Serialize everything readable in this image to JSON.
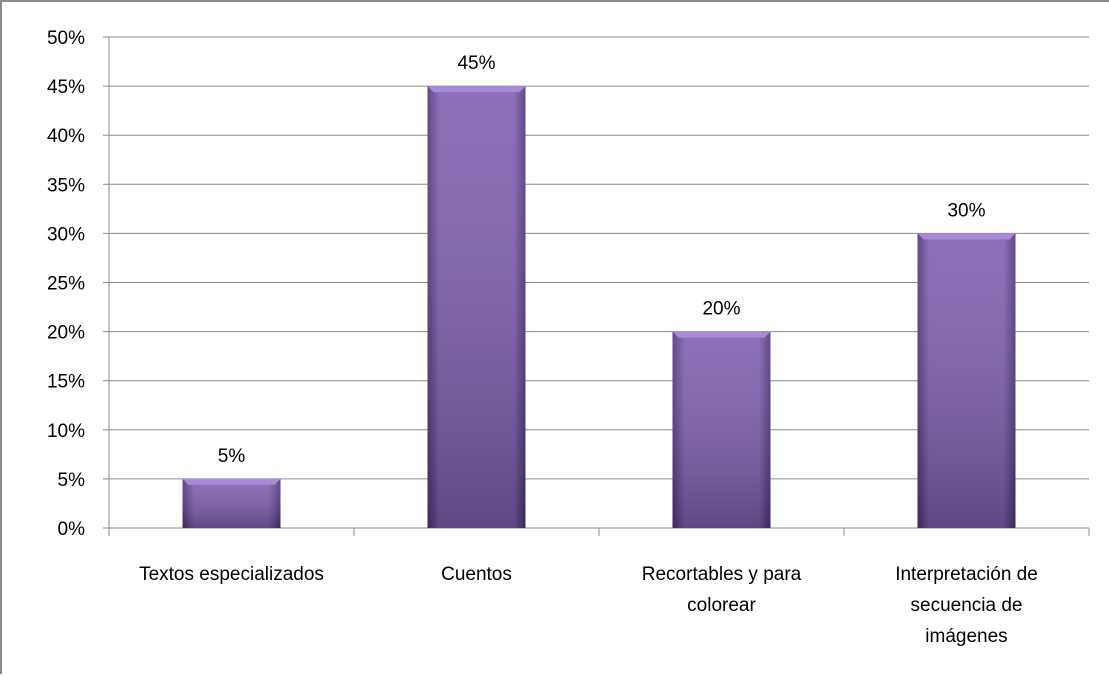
{
  "chart_data": {
    "type": "bar",
    "categories": [
      [
        "Textos especializados"
      ],
      [
        "Cuentos"
      ],
      [
        "Recortables y para",
        "colorear"
      ],
      [
        "Interpretación de",
        "secuencia de",
        "imágenes"
      ]
    ],
    "values": [
      5,
      45,
      20,
      30
    ],
    "data_labels": [
      "5%",
      "45%",
      "20%",
      "30%"
    ],
    "ylim": [
      0,
      50
    ],
    "y_ticks": [
      "0%",
      "5%",
      "10%",
      "15%",
      "20%",
      "25%",
      "30%",
      "35%",
      "40%",
      "45%",
      "50%"
    ],
    "title": "",
    "xlabel": "",
    "ylabel": "",
    "grid": true,
    "legend": "none",
    "colors": {
      "bar": "#7f5fb0",
      "bar_top": "#a78bd8",
      "bar_dark": "#4f3578",
      "grid": "#8c8c8c",
      "axis": "#8c8c8c"
    }
  }
}
